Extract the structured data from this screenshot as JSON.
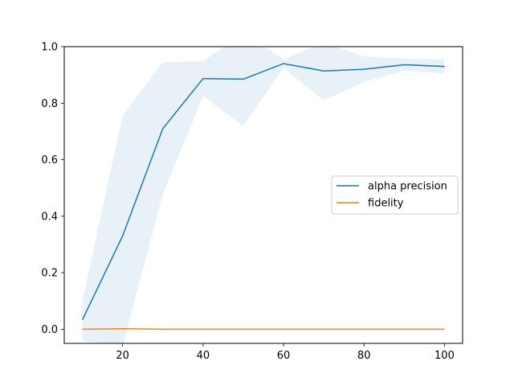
{
  "chart_data": {
    "type": "line",
    "title": "",
    "xlabel": "",
    "ylabel": "",
    "xlim": [
      5.5,
      104.5
    ],
    "ylim": [
      -0.05,
      1.0
    ],
    "x_ticks": [
      20,
      40,
      60,
      80,
      100
    ],
    "y_ticks": [
      0.0,
      0.2,
      0.4,
      0.6,
      0.8,
      1.0
    ],
    "x_tick_labels": [
      "20",
      "40",
      "60",
      "80",
      "100"
    ],
    "y_tick_labels": [
      "0.0",
      "0.2",
      "0.4",
      "0.6",
      "0.8",
      "1.0"
    ],
    "grid": false,
    "legend_position": "center-right",
    "x": [
      10,
      20,
      30,
      40,
      50,
      60,
      70,
      80,
      90,
      100
    ],
    "series": [
      {
        "name": "alpha precision",
        "color": "#1f77b4",
        "band_color": "#1f77b4",
        "band_opacity": 0.1,
        "values": [
          0.033,
          0.33,
          0.71,
          0.887,
          0.885,
          0.94,
          0.914,
          0.92,
          0.936,
          0.93
        ],
        "band_lower": [
          -0.04,
          -0.06,
          0.48,
          0.825,
          0.72,
          0.925,
          0.81,
          0.875,
          0.915,
          0.905
        ],
        "band_upper": [
          0.1,
          0.755,
          0.945,
          0.948,
          1.05,
          0.955,
          1.015,
          0.965,
          0.958,
          0.955
        ]
      },
      {
        "name": "fidelity",
        "color": "#ff7f0e",
        "values": [
          0.0,
          0.002,
          0.0,
          0.0,
          0.0,
          0.0,
          0.0,
          0.0,
          0.0,
          0.0
        ]
      }
    ]
  }
}
